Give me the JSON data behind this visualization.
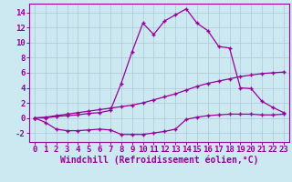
{
  "xlabel": "Windchill (Refroidissement éolien,°C)",
  "xlim": [
    -0.5,
    23.5
  ],
  "ylim": [
    -3.2,
    15.2
  ],
  "yticks": [
    -2,
    0,
    2,
    4,
    6,
    8,
    10,
    12,
    14
  ],
  "xticks": [
    0,
    1,
    2,
    3,
    4,
    5,
    6,
    7,
    8,
    9,
    10,
    11,
    12,
    13,
    14,
    15,
    16,
    17,
    18,
    19,
    20,
    21,
    22,
    23
  ],
  "bg_color": "#cce8f0",
  "line_color": "#990099",
  "grid_color": "#b0c8d8",
  "line1_x": [
    0,
    1,
    2,
    3,
    4,
    5,
    6,
    7,
    8,
    9,
    10,
    11,
    12,
    13,
    14,
    15,
    16,
    17,
    18,
    19,
    20,
    21,
    22,
    23
  ],
  "line1_y": [
    0,
    -0.6,
    -1.5,
    -1.7,
    -1.7,
    -1.6,
    -1.5,
    -1.6,
    -2.2,
    -2.2,
    -2.2,
    -2.0,
    -1.8,
    -1.5,
    -0.2,
    0.1,
    0.3,
    0.4,
    0.5,
    0.5,
    0.5,
    0.4,
    0.4,
    0.5
  ],
  "line2_x": [
    0,
    1,
    2,
    3,
    4,
    5,
    6,
    7,
    8,
    9,
    10,
    11,
    12,
    13,
    14,
    15,
    16,
    17,
    18,
    19,
    20,
    21,
    22,
    23
  ],
  "line2_y": [
    0,
    0.1,
    0.3,
    0.5,
    0.7,
    0.9,
    1.1,
    1.3,
    1.5,
    1.7,
    2.0,
    2.4,
    2.8,
    3.2,
    3.7,
    4.2,
    4.6,
    4.9,
    5.2,
    5.5,
    5.7,
    5.9,
    6.0,
    6.1
  ],
  "line3_x": [
    0,
    1,
    2,
    3,
    4,
    5,
    6,
    7,
    8,
    9,
    10,
    11,
    12,
    13,
    14,
    15,
    16,
    17,
    18,
    19,
    20,
    21,
    22,
    23
  ],
  "line3_y": [
    0,
    0.0,
    0.2,
    0.3,
    0.4,
    0.6,
    0.7,
    1.0,
    4.6,
    8.8,
    12.6,
    11.1,
    12.9,
    13.7,
    14.5,
    12.6,
    11.6,
    9.5,
    9.3,
    4.0,
    3.9,
    2.2,
    1.4,
    0.7
  ],
  "xlabel_fontsize": 7,
  "tick_fontsize": 6.5,
  "marker": "+"
}
